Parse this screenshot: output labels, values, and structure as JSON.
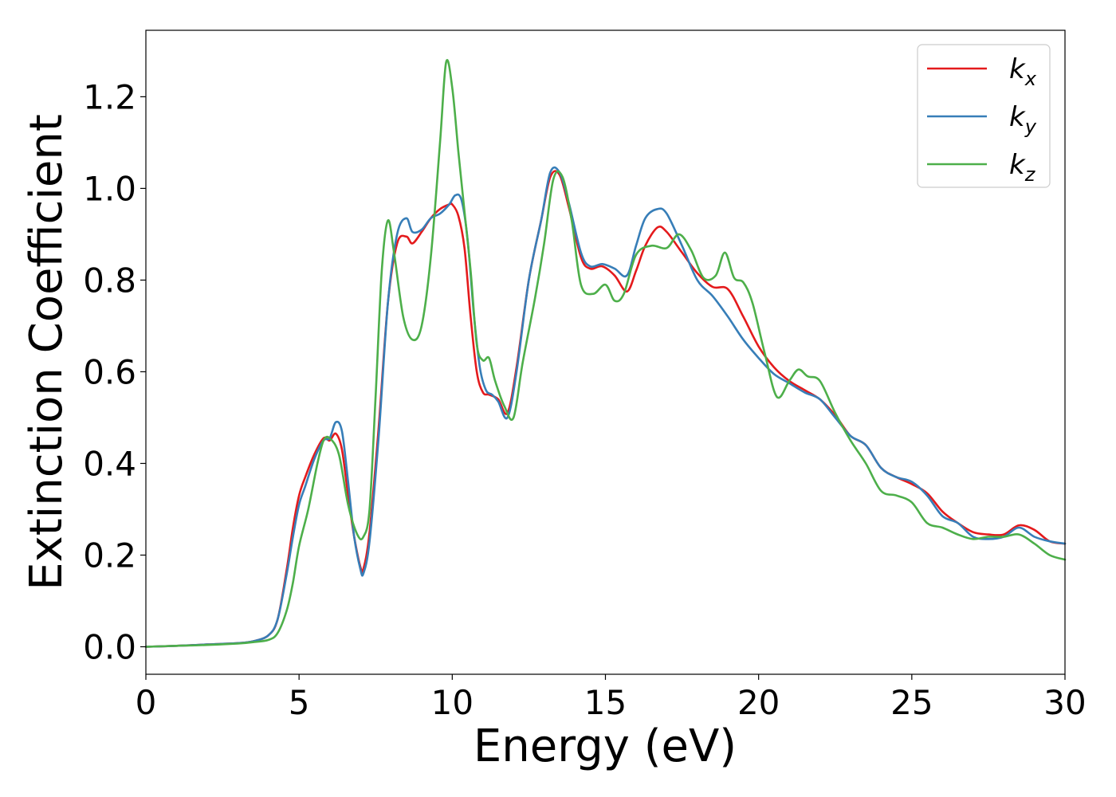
{
  "chart_data": {
    "type": "line",
    "title": "",
    "xlabel": "Energy (eV)",
    "ylabel": "Extinction Coefficient",
    "xlim": [
      0,
      30
    ],
    "ylim": [
      -0.06,
      1.345
    ],
    "xticks": [
      0,
      5,
      10,
      15,
      20,
      25,
      30
    ],
    "xtick_labels": [
      "0",
      "5",
      "10",
      "15",
      "20",
      "25",
      "30"
    ],
    "yticks": [
      0.0,
      0.2,
      0.4,
      0.6,
      0.8,
      1.0,
      1.2
    ],
    "ytick_labels": [
      "0.0",
      "0.2",
      "0.4",
      "0.6",
      "0.8",
      "1.0",
      "1.2"
    ],
    "grid": false,
    "legend_position": "top-right",
    "series": [
      {
        "name": "k_x",
        "label_base": "k",
        "label_sub": "x",
        "color": "#e41a1c",
        "x": [
          0,
          1,
          2,
          3,
          3.5,
          4,
          4.3,
          4.6,
          4.8,
          5.0,
          5.2,
          5.5,
          5.8,
          6.0,
          6.2,
          6.4,
          6.6,
          6.8,
          7.0,
          7.1,
          7.3,
          7.6,
          7.9,
          8.2,
          8.5,
          8.7,
          9.0,
          9.3,
          9.6,
          9.9,
          10.0,
          10.2,
          10.4,
          10.6,
          10.8,
          11.0,
          11.2,
          11.5,
          11.8,
          12.1,
          12.5,
          12.9,
          13.2,
          13.5,
          13.8,
          14.2,
          14.5,
          14.9,
          15.3,
          15.7,
          16.0,
          16.3,
          16.7,
          17.0,
          17.5,
          18.0,
          18.5,
          19.0,
          19.5,
          20.0,
          20.5,
          21.0,
          21.5,
          22.0,
          22.5,
          23.0,
          23.5,
          24.0,
          24.5,
          25.0,
          25.5,
          26.0,
          26.5,
          27.0,
          27.5,
          28.0,
          28.5,
          29.0,
          29.5,
          30.0
        ],
        "y": [
          0.0,
          0.002,
          0.005,
          0.008,
          0.012,
          0.025,
          0.06,
          0.17,
          0.26,
          0.33,
          0.37,
          0.42,
          0.455,
          0.45,
          0.465,
          0.43,
          0.33,
          0.24,
          0.175,
          0.17,
          0.25,
          0.48,
          0.75,
          0.88,
          0.895,
          0.88,
          0.905,
          0.935,
          0.955,
          0.965,
          0.965,
          0.94,
          0.87,
          0.72,
          0.6,
          0.555,
          0.55,
          0.54,
          0.51,
          0.61,
          0.8,
          0.93,
          1.025,
          1.03,
          0.96,
          0.85,
          0.825,
          0.83,
          0.81,
          0.775,
          0.82,
          0.875,
          0.915,
          0.905,
          0.86,
          0.815,
          0.785,
          0.78,
          0.72,
          0.655,
          0.61,
          0.58,
          0.56,
          0.54,
          0.505,
          0.46,
          0.44,
          0.39,
          0.37,
          0.355,
          0.335,
          0.295,
          0.27,
          0.25,
          0.245,
          0.245,
          0.265,
          0.255,
          0.23,
          0.225
        ]
      },
      {
        "name": "k_y",
        "label_base": "k",
        "label_sub": "y",
        "color": "#377eb8",
        "x": [
          0,
          1,
          2,
          3,
          3.5,
          4,
          4.3,
          4.6,
          4.8,
          5.0,
          5.2,
          5.5,
          5.8,
          6.0,
          6.2,
          6.4,
          6.6,
          6.8,
          7.0,
          7.1,
          7.3,
          7.6,
          7.9,
          8.2,
          8.5,
          8.7,
          9.0,
          9.3,
          9.6,
          9.9,
          10.1,
          10.3,
          10.5,
          10.7,
          10.9,
          11.1,
          11.3,
          11.5,
          11.8,
          12.1,
          12.5,
          12.9,
          13.2,
          13.5,
          13.8,
          14.2,
          14.5,
          14.9,
          15.3,
          15.7,
          16.0,
          16.3,
          16.7,
          17.0,
          17.5,
          18.0,
          18.5,
          19.0,
          19.5,
          20.0,
          20.5,
          21.0,
          21.5,
          22.0,
          22.5,
          23.0,
          23.5,
          24.0,
          24.5,
          25.0,
          25.5,
          26.0,
          26.5,
          27.0,
          27.5,
          28.0,
          28.5,
          29.0,
          29.5,
          30.0
        ],
        "y": [
          0.0,
          0.002,
          0.005,
          0.008,
          0.012,
          0.025,
          0.06,
          0.16,
          0.24,
          0.31,
          0.35,
          0.41,
          0.45,
          0.455,
          0.49,
          0.47,
          0.36,
          0.24,
          0.17,
          0.16,
          0.23,
          0.46,
          0.75,
          0.9,
          0.935,
          0.905,
          0.91,
          0.935,
          0.945,
          0.965,
          0.985,
          0.975,
          0.89,
          0.73,
          0.61,
          0.56,
          0.55,
          0.535,
          0.5,
          0.6,
          0.8,
          0.93,
          1.035,
          1.035,
          0.97,
          0.86,
          0.83,
          0.835,
          0.825,
          0.81,
          0.875,
          0.935,
          0.955,
          0.945,
          0.875,
          0.8,
          0.765,
          0.72,
          0.67,
          0.63,
          0.595,
          0.575,
          0.555,
          0.54,
          0.5,
          0.46,
          0.44,
          0.39,
          0.37,
          0.36,
          0.33,
          0.285,
          0.27,
          0.24,
          0.235,
          0.24,
          0.26,
          0.24,
          0.23,
          0.225
        ]
      },
      {
        "name": "k_z",
        "label_base": "k",
        "label_sub": "z",
        "color": "#4daf4a",
        "x": [
          0,
          1,
          2,
          3,
          3.5,
          4,
          4.3,
          4.6,
          4.8,
          5.0,
          5.3,
          5.6,
          5.8,
          6.0,
          6.3,
          6.6,
          6.9,
          7.1,
          7.3,
          7.5,
          7.7,
          7.9,
          8.1,
          8.4,
          8.7,
          9.0,
          9.3,
          9.6,
          9.8,
          10.0,
          10.2,
          10.4,
          10.6,
          10.8,
          11.0,
          11.2,
          11.4,
          11.7,
          12.0,
          12.3,
          12.7,
          13.0,
          13.3,
          13.6,
          13.9,
          14.2,
          14.6,
          15.0,
          15.3,
          15.6,
          16.0,
          16.5,
          17.0,
          17.4,
          17.8,
          18.2,
          18.6,
          18.9,
          19.2,
          19.5,
          19.8,
          20.2,
          20.6,
          21.0,
          21.3,
          21.6,
          22.0,
          22.5,
          23.0,
          23.5,
          24.0,
          24.5,
          25.0,
          25.5,
          26.0,
          26.5,
          27.0,
          27.5,
          28.0,
          28.5,
          29.0,
          29.5,
          30.0
        ],
        "y": [
          0.0,
          0.002,
          0.004,
          0.007,
          0.01,
          0.015,
          0.03,
          0.08,
          0.14,
          0.22,
          0.3,
          0.4,
          0.45,
          0.455,
          0.42,
          0.31,
          0.245,
          0.24,
          0.3,
          0.55,
          0.82,
          0.93,
          0.86,
          0.72,
          0.67,
          0.7,
          0.85,
          1.1,
          1.275,
          1.22,
          1.08,
          0.95,
          0.82,
          0.66,
          0.625,
          0.63,
          0.58,
          0.525,
          0.5,
          0.62,
          0.76,
          0.88,
          1.02,
          1.025,
          0.93,
          0.79,
          0.77,
          0.79,
          0.755,
          0.77,
          0.855,
          0.875,
          0.87,
          0.9,
          0.865,
          0.805,
          0.81,
          0.86,
          0.805,
          0.795,
          0.75,
          0.64,
          0.545,
          0.58,
          0.605,
          0.59,
          0.58,
          0.51,
          0.45,
          0.4,
          0.34,
          0.33,
          0.315,
          0.27,
          0.26,
          0.245,
          0.235,
          0.24,
          0.24,
          0.245,
          0.225,
          0.2,
          0.19
        ]
      }
    ]
  }
}
